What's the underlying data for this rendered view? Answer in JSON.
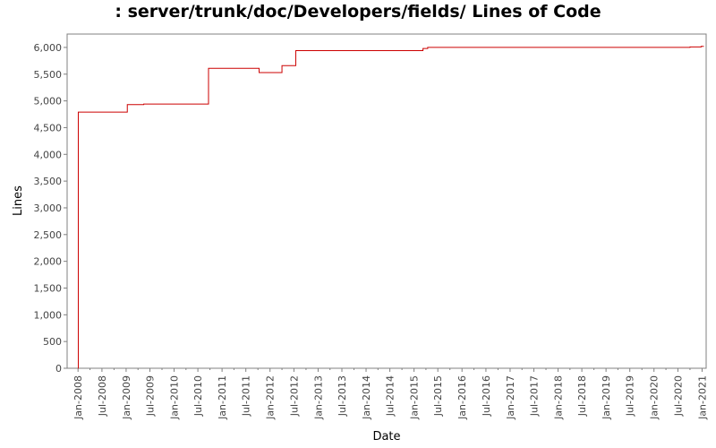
{
  "chart_data": {
    "type": "line",
    "title": ": server/trunk/doc/Developers/fields/ Lines of Code",
    "xlabel": "Date",
    "ylabel": "Lines",
    "x_tick_labels": [
      "Jan-2008",
      "Jul-2008",
      "Jan-2009",
      "Jul-2009",
      "Jan-2010",
      "Jul-2010",
      "Jan-2011",
      "Jul-2011",
      "Jan-2012",
      "Jul-2012",
      "Jan-2013",
      "Jul-2013",
      "Jan-2014",
      "Jul-2014",
      "Jan-2015",
      "Jul-2015",
      "Jan-2016",
      "Jul-2016",
      "Jan-2017",
      "Jul-2017",
      "Jan-2018",
      "Jul-2018",
      "Jan-2019",
      "Jul-2019",
      "Jan-2020",
      "Jul-2020",
      "Jan-2021"
    ],
    "y_tick_labels": [
      "0",
      "500",
      "1,000",
      "1,500",
      "2,000",
      "2,500",
      "3,000",
      "3,500",
      "4,000",
      "4,500",
      "5,000",
      "5,500",
      "6,000"
    ],
    "ylim": [
      0,
      6250
    ],
    "xlim": [
      "2007-10-10",
      "2021-02-01"
    ],
    "grid": false,
    "step": true,
    "series_color": "#cc0000",
    "series": [
      {
        "x": [
          "2008-01-01",
          "2008-01-03",
          "2009-01-10",
          "2009-05-15",
          "2010-09-20",
          "2011-10-10",
          "2012-04-01",
          "2012-07-15",
          "2015-03-10",
          "2015-04-15",
          "2020-10-01",
          "2020-12-25"
        ],
        "y": [
          0,
          4790,
          4930,
          4940,
          5610,
          5530,
          5660,
          5940,
          5980,
          6000,
          6010,
          6020
        ]
      }
    ]
  }
}
